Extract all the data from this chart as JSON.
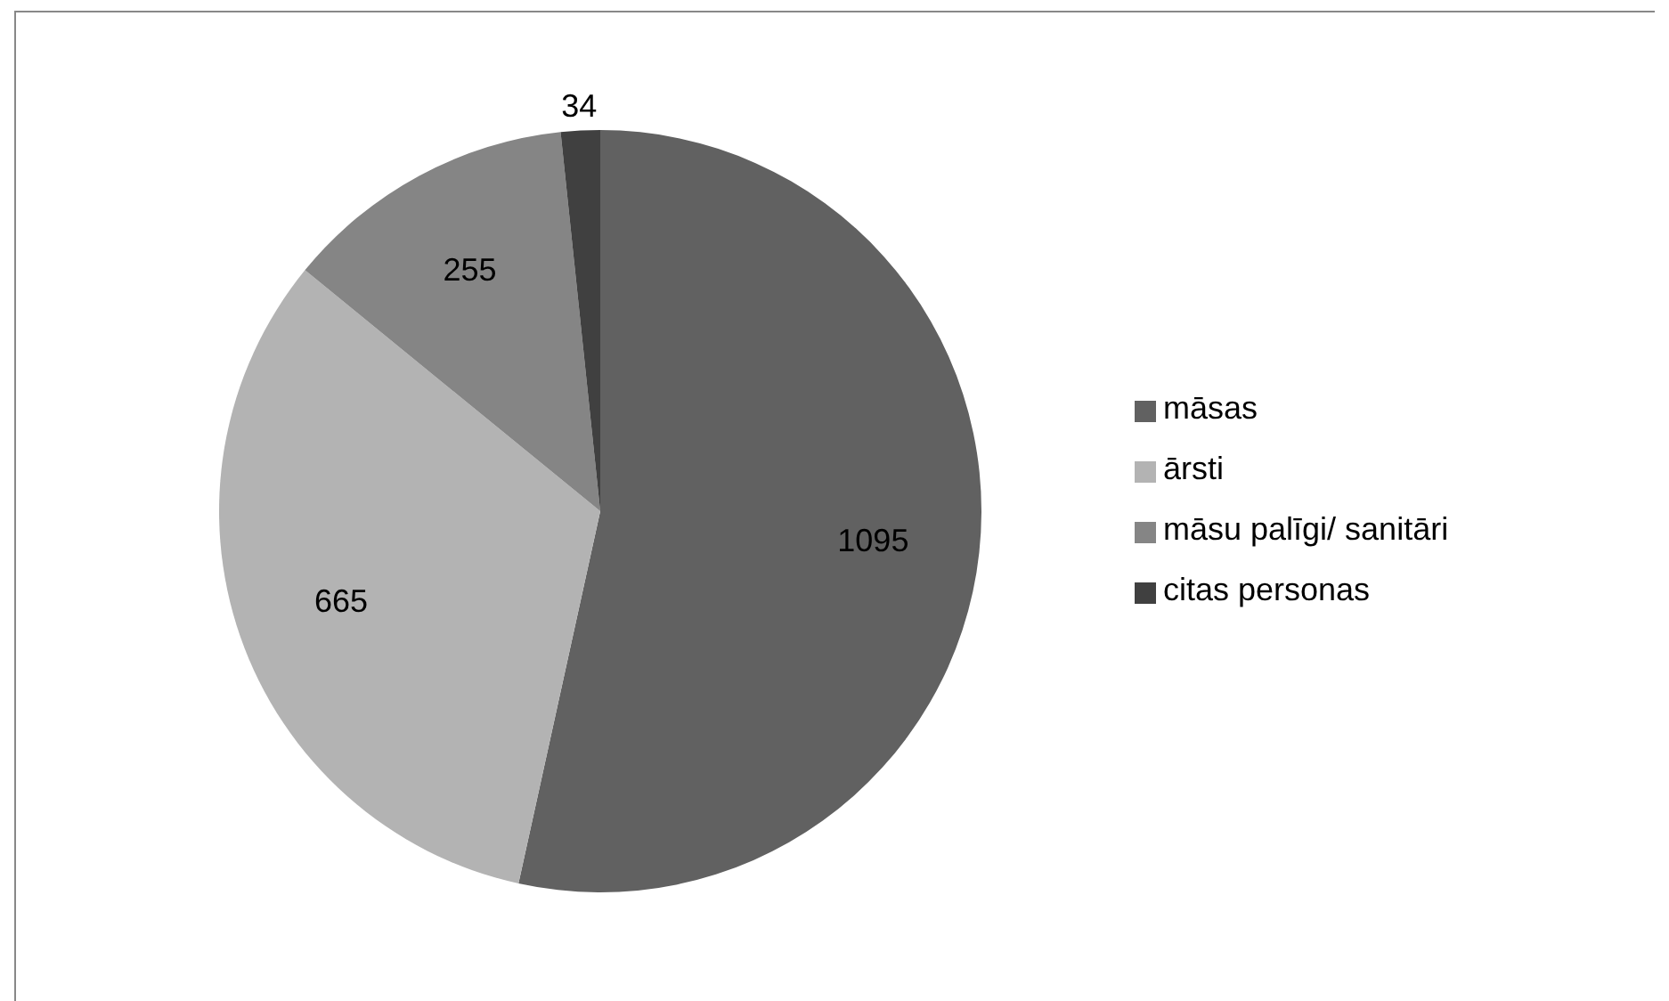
{
  "chart_data": {
    "type": "pie",
    "categories": [
      "māsas",
      "ārsti",
      "māsu palīgi/ sanitāri",
      "citas personas"
    ],
    "values": [
      1095,
      665,
      255,
      34
    ],
    "colors": [
      "#616161",
      "#b3b3b3",
      "#858585",
      "#404040"
    ],
    "data_labels": true,
    "legend": "right"
  }
}
